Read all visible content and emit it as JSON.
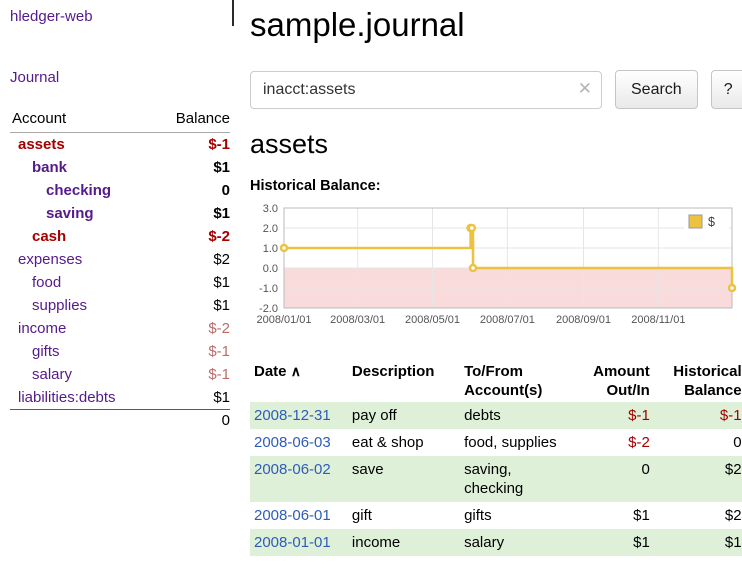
{
  "app": {
    "title": "hledger-web"
  },
  "colors": {
    "link_purple": "#551a8b",
    "date_link_blue": "#2e5cb8",
    "negative_red": "#a40000",
    "soft_negative_red": "#bb6b6b",
    "row_shade_green": "#dff0d8",
    "chart_line_yellow": "#edc240",
    "chart_negative_region_pink": "#fadbdb"
  },
  "sidebar": {
    "journal_label": "Journal",
    "header": {
      "account": "Account",
      "balance": "Balance"
    },
    "accounts": [
      {
        "name": "assets",
        "balance": "$-1",
        "indent": 0,
        "bold": true,
        "name_style": "negative",
        "balance_style": "negative"
      },
      {
        "name": "bank",
        "balance": "$1",
        "indent": 1,
        "bold": true,
        "name_style": "link",
        "balance_style": "normal"
      },
      {
        "name": "checking",
        "balance": "0",
        "indent": 2,
        "bold": true,
        "name_style": "link",
        "balance_style": "normal"
      },
      {
        "name": "saving",
        "balance": "$1",
        "indent": 2,
        "bold": true,
        "name_style": "link",
        "balance_style": "normal"
      },
      {
        "name": "cash",
        "balance": "$-2",
        "indent": 1,
        "bold": true,
        "name_style": "negative",
        "balance_style": "negative"
      },
      {
        "name": "expenses",
        "balance": "$2",
        "indent": 0,
        "bold": false,
        "name_style": "link",
        "balance_style": "normal"
      },
      {
        "name": "food",
        "balance": "$1",
        "indent": 1,
        "bold": false,
        "name_style": "link",
        "balance_style": "normal"
      },
      {
        "name": "supplies",
        "balance": "$1",
        "indent": 1,
        "bold": false,
        "name_style": "link",
        "balance_style": "normal"
      },
      {
        "name": "income",
        "balance": "$-2",
        "indent": 0,
        "bold": false,
        "name_style": "link",
        "balance_style": "soft-negative"
      },
      {
        "name": "gifts",
        "balance": "$-1",
        "indent": 1,
        "bold": false,
        "name_style": "link",
        "balance_style": "soft-negative"
      },
      {
        "name": "salary",
        "balance": "$-1",
        "indent": 1,
        "bold": false,
        "name_style": "link",
        "balance_style": "soft-negative"
      },
      {
        "name": "liabilities:debts",
        "balance": "$1",
        "indent": 0,
        "bold": false,
        "name_style": "link",
        "balance_style": "normal"
      }
    ],
    "total": "0"
  },
  "main": {
    "title": "sample.journal",
    "search": {
      "value": "inacct:assets",
      "clear_icon": "✕",
      "button_label": "Search",
      "help_label": "?"
    },
    "account_heading": "assets",
    "chart_label": "Historical Balance:"
  },
  "chart_data": {
    "type": "line",
    "title": "Historical Balance:",
    "step": true,
    "series": [
      {
        "name": "$",
        "color": "#edc240",
        "points": [
          {
            "date": "2008-01-01",
            "value": 1
          },
          {
            "date": "2008-06-01",
            "value": 2
          },
          {
            "date": "2008-06-02",
            "value": 2
          },
          {
            "date": "2008-06-03",
            "value": 0
          },
          {
            "date": "2008-12-31",
            "value": -1
          }
        ]
      }
    ],
    "ylim": [
      -2,
      3
    ],
    "y_ticks": [
      "3.0",
      "2.0",
      "1.0",
      "0.0",
      "-1.0",
      "-2.0"
    ],
    "x_range": [
      "2008-01-01",
      "2008-12-31"
    ],
    "x_ticks": [
      "2008/01/01",
      "2008/03/01",
      "2008/05/01",
      "2008/07/01",
      "2008/09/01",
      "2008/11/01"
    ],
    "negative_region": {
      "from": 0,
      "to": -2,
      "color": "#fadbdb"
    },
    "grid": true,
    "legend": {
      "label": "$",
      "position": "top-right"
    }
  },
  "register": {
    "header": {
      "date": "Date",
      "sort_icon": "∧",
      "description": "Description",
      "accounts": "To/From Account(s)",
      "amount": "Amount Out/In",
      "balance": "Historical Balance"
    },
    "rows": [
      {
        "date": "2008-12-31",
        "description": "pay off",
        "accounts": "debts",
        "amount": "$-1",
        "amount_style": "negative",
        "balance": "$-1",
        "balance_style": "negative",
        "shaded": true
      },
      {
        "date": "2008-06-03",
        "description": "eat & shop",
        "accounts": "food, supplies",
        "amount": "$-2",
        "amount_style": "negative",
        "balance": "0",
        "balance_style": "normal",
        "shaded": false
      },
      {
        "date": "2008-06-02",
        "description": "save",
        "accounts": "saving, checking",
        "amount": "0",
        "amount_style": "normal",
        "balance": "$2",
        "balance_style": "normal",
        "shaded": true
      },
      {
        "date": "2008-06-01",
        "description": "gift",
        "accounts": "gifts",
        "amount": "$1",
        "amount_style": "normal",
        "balance": "$2",
        "balance_style": "normal",
        "shaded": false
      },
      {
        "date": "2008-01-01",
        "description": "income",
        "accounts": "salary",
        "amount": "$1",
        "amount_style": "normal",
        "balance": "$1",
        "balance_style": "normal",
        "shaded": true
      }
    ]
  }
}
